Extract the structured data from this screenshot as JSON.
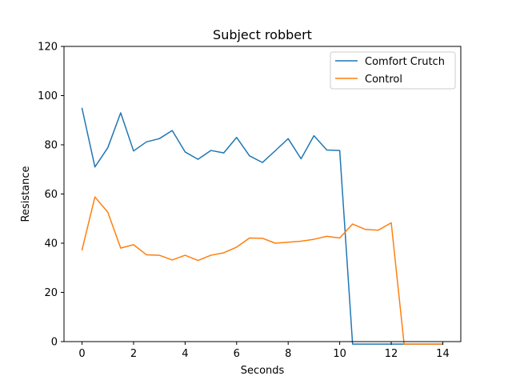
{
  "chart_data": {
    "type": "line",
    "title": "Subject robbert",
    "xlabel": "Seconds",
    "ylabel": "Resistance",
    "xlim": [
      -0.7,
      14.7
    ],
    "ylim": [
      0,
      120
    ],
    "xticks": [
      0,
      2,
      4,
      6,
      8,
      10,
      12,
      14
    ],
    "yticks": [
      0,
      20,
      40,
      60,
      80,
      100,
      120
    ],
    "legend_position": "top-right",
    "grid": false,
    "series": [
      {
        "name": "Comfort Crutch",
        "color": "#1f77b4",
        "x": [
          0,
          0.5,
          1,
          1.5,
          2,
          2.5,
          3,
          3.5,
          4,
          4.5,
          5,
          5.5,
          6,
          6.5,
          7,
          7.5,
          8,
          8.5,
          9,
          9.5,
          10,
          10.5,
          11,
          11.5,
          12,
          12.5,
          13,
          13.5,
          14
        ],
        "values": [
          94.8,
          71.0,
          78.8,
          93.0,
          77.5,
          81.2,
          82.5,
          85.8,
          77.1,
          74.1,
          77.7,
          76.7,
          83.0,
          75.5,
          72.8,
          77.6,
          82.5,
          74.3,
          83.7,
          77.9,
          77.7,
          -1,
          -1,
          -1,
          -1,
          -1,
          -1,
          -1,
          -1
        ]
      },
      {
        "name": "Control",
        "color": "#ff7f0e",
        "x": [
          0,
          0.5,
          1,
          1.5,
          2,
          2.5,
          3,
          3.5,
          4,
          4.5,
          5,
          5.5,
          6,
          6.5,
          7,
          7.5,
          8,
          8.5,
          9,
          9.5,
          10,
          10.5,
          11,
          11.5,
          12,
          12.5,
          13,
          13.5,
          14
        ],
        "values": [
          37.3,
          58.8,
          52.6,
          38.0,
          39.4,
          35.3,
          35.1,
          33.2,
          35.1,
          33.0,
          35.1,
          36.1,
          38.4,
          42.1,
          42.0,
          40.0,
          40.4,
          40.8,
          41.6,
          42.8,
          42.1,
          47.8,
          45.6,
          45.3,
          48.3,
          -1,
          -1,
          -1,
          -1
        ]
      }
    ]
  }
}
